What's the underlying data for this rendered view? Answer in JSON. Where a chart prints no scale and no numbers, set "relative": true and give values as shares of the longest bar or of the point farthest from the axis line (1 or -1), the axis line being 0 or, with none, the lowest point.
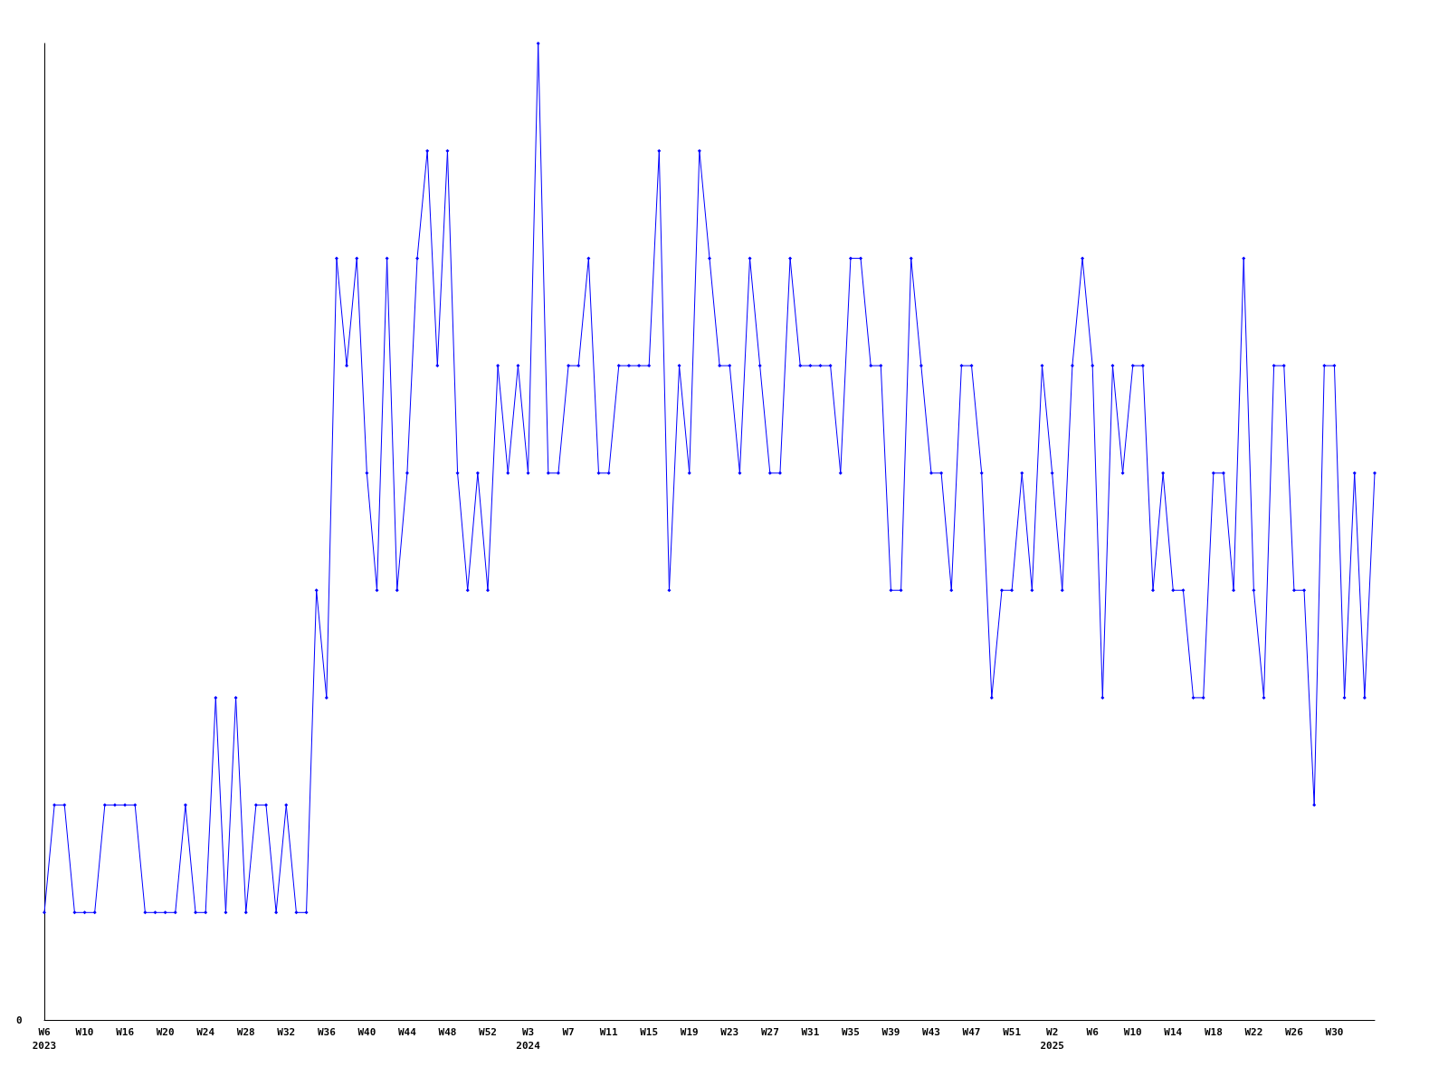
{
  "chart_data": {
    "type": "line",
    "relative": true,
    "marker": "diamond",
    "annotations": [
      "0"
    ],
    "categories": [
      "W6\n2023",
      null,
      null,
      null,
      "W10",
      null,
      null,
      null,
      "W16",
      null,
      null,
      null,
      "W20",
      null,
      null,
      null,
      "W24",
      null,
      null,
      null,
      "W28",
      null,
      null,
      null,
      "W32",
      null,
      null,
      null,
      "W36",
      null,
      null,
      null,
      "W40",
      null,
      null,
      null,
      "W44",
      null,
      null,
      null,
      "W48",
      null,
      null,
      null,
      "W52",
      null,
      null,
      null,
      "W3\n2024",
      null,
      null,
      null,
      "W7",
      null,
      null,
      null,
      "W11",
      null,
      null,
      null,
      "W15",
      null,
      null,
      null,
      "W19",
      null,
      null,
      null,
      "W23",
      null,
      null,
      null,
      "W27",
      null,
      null,
      null,
      "W31",
      null,
      null,
      null,
      "W35",
      null,
      null,
      null,
      "W39",
      null,
      null,
      null,
      "W43",
      null,
      null,
      null,
      "W47",
      null,
      null,
      null,
      "W51",
      null,
      null,
      null,
      "W2\n2025",
      null,
      null,
      null,
      "W6",
      null,
      null,
      null,
      "W10",
      null,
      null,
      null,
      "W14",
      null,
      null,
      null,
      "W18",
      null,
      null,
      null,
      "W22",
      null,
      null,
      null,
      "W26",
      null,
      null,
      null,
      "W30",
      null,
      null,
      null,
      null
    ],
    "series": [
      {
        "color": "#0000ff",
        "values": [
          0.11,
          0.22,
          0.22,
          0.11,
          0.11,
          0.11,
          0.22,
          0.22,
          0.22,
          0.22,
          0.11,
          0.11,
          0.11,
          0.11,
          0.22,
          0.11,
          0.11,
          0.33,
          0.11,
          0.33,
          0.11,
          0.22,
          0.22,
          0.11,
          0.22,
          0.11,
          0.11,
          0.44,
          0.33,
          0.78,
          0.67,
          0.78,
          0.56,
          0.44,
          0.78,
          0.44,
          0.56,
          0.78,
          0.89,
          0.67,
          0.89,
          0.56,
          0.44,
          0.56,
          0.44,
          0.67,
          0.56,
          0.67,
          0.56,
          1,
          0.56,
          0.56,
          0.67,
          0.67,
          0.78,
          0.56,
          0.56,
          0.67,
          0.67,
          0.67,
          0.67,
          0.89,
          0.44,
          0.67,
          0.56,
          0.89,
          0.78,
          0.67,
          0.67,
          0.56,
          0.78,
          0.67,
          0.56,
          0.56,
          0.78,
          0.67,
          0.67,
          0.67,
          0.67,
          0.56,
          0.78,
          0.78,
          0.67,
          0.67,
          0.44,
          0.44,
          0.78,
          0.67,
          0.56,
          0.56,
          0.44,
          0.67,
          0.67,
          0.56,
          0.33,
          0.44,
          0.44,
          0.56,
          0.44,
          0.67,
          0.56,
          0.44,
          0.67,
          0.78,
          0.67,
          0.33,
          0.67,
          0.56,
          0.67,
          0.67,
          0.44,
          0.56,
          0.44,
          0.44,
          0.33,
          0.33,
          0.56,
          0.56,
          0.44,
          0.78,
          0.44,
          0.33,
          0.67,
          0.67,
          0.44,
          0.44,
          0.22,
          0.67,
          0.67,
          0.33,
          0.56,
          0.33,
          0.56
        ]
      }
    ]
  }
}
